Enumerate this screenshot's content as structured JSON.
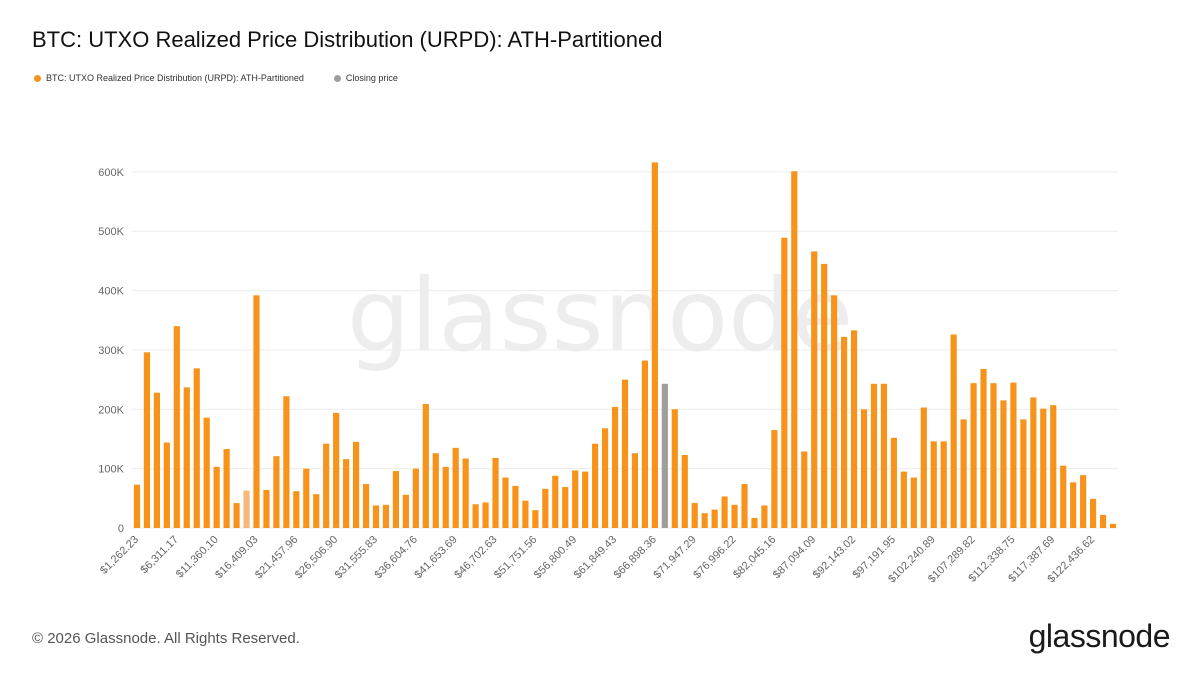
{
  "title": "BTC: UTXO Realized Price Distribution (URPD): ATH-Partitioned",
  "legend": [
    {
      "label": "BTC: UTXO Realized Price Distribution (URPD): ATH-Partitioned",
      "color": "#f7931a"
    },
    {
      "label": "Closing price",
      "color": "#9e9e9e"
    }
  ],
  "watermark": "glassnode",
  "footer": {
    "copyright": "© 2026 Glassnode. All Rights Reserved.",
    "logo": "glassnode"
  },
  "colors": {
    "bar": "#f7931a",
    "bar_light": "#f5b87a",
    "closing": "#9e9e9e",
    "grid": "#ececec",
    "axis_text": "#666666"
  },
  "chart_data": {
    "type": "bar",
    "ylim": [
      0,
      620000
    ],
    "yticks": [
      0,
      100000,
      200000,
      300000,
      400000,
      500000,
      600000
    ],
    "ytick_labels": [
      "0",
      "100K",
      "200K",
      "300K",
      "400K",
      "500K",
      "600K"
    ],
    "grid": true,
    "legend_position": "top-left",
    "xtick_labels": [
      {
        "index": 0,
        "label": "$1,262.23"
      },
      {
        "index": 4,
        "label": "$6,311.17"
      },
      {
        "index": 8,
        "label": "$11,360.10"
      },
      {
        "index": 12,
        "label": "$16,409.03"
      },
      {
        "index": 16,
        "label": "$21,457.96"
      },
      {
        "index": 20,
        "label": "$26,506.90"
      },
      {
        "index": 24,
        "label": "$31,555.83"
      },
      {
        "index": 28,
        "label": "$36,604.76"
      },
      {
        "index": 32,
        "label": "$41,653.69"
      },
      {
        "index": 36,
        "label": "$46,702.63"
      },
      {
        "index": 40,
        "label": "$51,751.56"
      },
      {
        "index": 44,
        "label": "$56,800.49"
      },
      {
        "index": 48,
        "label": "$61,849.43"
      },
      {
        "index": 52,
        "label": "$66,898.36"
      },
      {
        "index": 56,
        "label": "$71,947.29"
      },
      {
        "index": 60,
        "label": "$76,996.22"
      },
      {
        "index": 64,
        "label": "$82,045.16"
      },
      {
        "index": 68,
        "label": "$87,094.09"
      },
      {
        "index": 72,
        "label": "$92,143.02"
      },
      {
        "index": 76,
        "label": "$97,191.95"
      },
      {
        "index": 80,
        "label": "$102,240.89"
      },
      {
        "index": 84,
        "label": "$107,289.82"
      },
      {
        "index": 88,
        "label": "$112,338.75"
      },
      {
        "index": 92,
        "label": "$117,387.69"
      },
      {
        "index": 96,
        "label": "$122,436.62"
      }
    ],
    "series": [
      {
        "name": "BTC: UTXO Realized Price Distribution (URPD): ATH-Partitioned",
        "values": [
          73000,
          296000,
          228000,
          144000,
          340000,
          237000,
          269000,
          186000,
          103000,
          133000,
          42000,
          63000,
          392000,
          64000,
          121000,
          222000,
          62000,
          100000,
          57000,
          142000,
          194000,
          116000,
          145000,
          74000,
          38000,
          39000,
          96000,
          56000,
          100000,
          209000,
          126000,
          103000,
          135000,
          117000,
          40000,
          43000,
          118000,
          85000,
          71000,
          46000,
          30000,
          66000,
          88000,
          69000,
          97000,
          95000,
          142000,
          168000,
          204000,
          250000,
          126000,
          282000,
          616000,
          0,
          200000,
          123000,
          42000,
          25000,
          31000,
          53000,
          39000,
          74000,
          17000,
          38000,
          165000,
          489000,
          601000,
          129000,
          466000,
          445000,
          392000,
          322000,
          333000,
          200000,
          243000,
          243000,
          152000,
          95000,
          85000,
          203000,
          146000,
          146000,
          326000,
          183000,
          244000,
          268000,
          244000,
          215000,
          245000,
          183000,
          220000,
          201000,
          207000,
          105000,
          77000,
          89000,
          49000,
          22000,
          7000
        ]
      },
      {
        "name": "Closing price",
        "values": [
          null,
          null,
          null,
          null,
          null,
          null,
          null,
          null,
          null,
          null,
          null,
          null,
          null,
          null,
          null,
          null,
          null,
          null,
          null,
          null,
          null,
          null,
          null,
          null,
          null,
          null,
          null,
          null,
          null,
          null,
          null,
          null,
          null,
          null,
          null,
          null,
          null,
          null,
          null,
          null,
          null,
          null,
          null,
          null,
          null,
          null,
          null,
          null,
          null,
          null,
          null,
          null,
          null,
          243000,
          null,
          null,
          null,
          null,
          null,
          null,
          null,
          null,
          null,
          null,
          null,
          null,
          null,
          null,
          null,
          null,
          null,
          null,
          null,
          null,
          null,
          null,
          null,
          null,
          null,
          null,
          null,
          null,
          null,
          null,
          null,
          null,
          null,
          null,
          null,
          null,
          null,
          null,
          null,
          null,
          null,
          null,
          null,
          null,
          null
        ]
      }
    ],
    "light_bar_indices": [
      11
    ]
  }
}
